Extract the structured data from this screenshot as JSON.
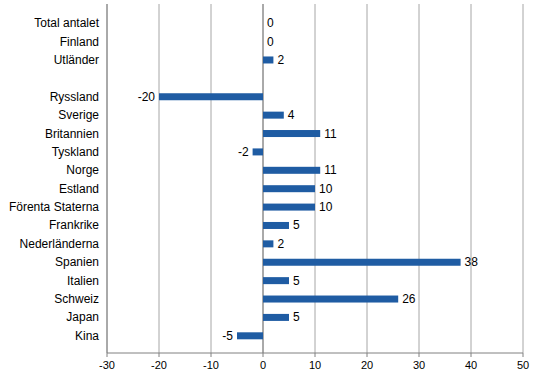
{
  "chart_data": {
    "type": "bar",
    "orientation": "horizontal",
    "categories": [
      "Total antalet",
      "Finland",
      "Utländer",
      null,
      "Ryssland",
      "Sverige",
      "Britannien",
      "Tyskland",
      "Norge",
      "Estland",
      "Förenta Staterna",
      "Frankrike",
      "Nederländerna",
      "Spanien",
      "Italien",
      "Schweiz",
      "Japan",
      "Kina"
    ],
    "values": [
      0,
      0,
      2,
      null,
      -20,
      4,
      11,
      -2,
      11,
      10,
      10,
      5,
      2,
      38,
      5,
      26,
      5,
      -5
    ],
    "color": "#1f5ca3",
    "xlim": [
      -30,
      50
    ],
    "xticks": [
      -30,
      -20,
      -10,
      0,
      10,
      20,
      30,
      40,
      50
    ],
    "grid": true,
    "data_labels": true
  }
}
